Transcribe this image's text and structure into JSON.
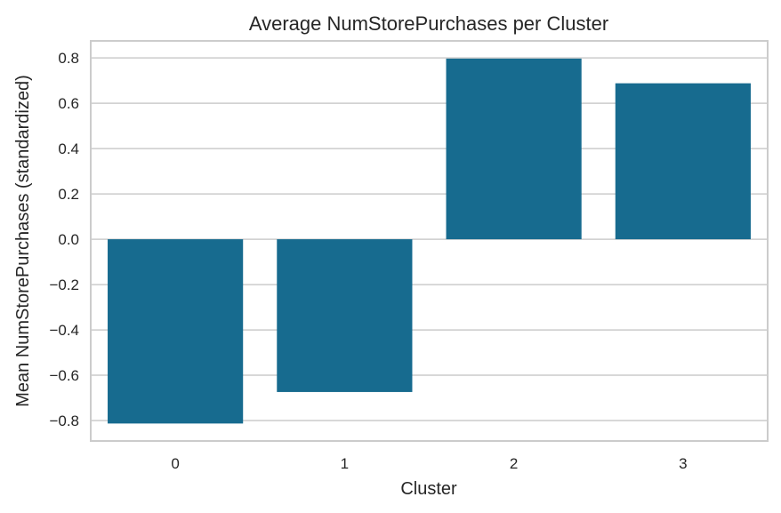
{
  "chart_data": {
    "type": "bar",
    "title": "Average NumStorePurchases per Cluster",
    "xlabel": "Cluster",
    "ylabel": "Mean NumStorePurchases (standardized)",
    "categories": [
      "0",
      "1",
      "2",
      "3"
    ],
    "values": [
      -0.813,
      -0.674,
      0.797,
      0.688
    ],
    "ylim": [
      -0.89,
      0.875
    ],
    "yticks": [
      0.8,
      0.6,
      0.4,
      0.2,
      0.0,
      -0.2,
      -0.4,
      -0.6,
      -0.8
    ],
    "ytick_labels": [
      "0.8",
      "0.6",
      "0.4",
      "0.2",
      "0.0",
      "−0.2",
      "−0.4",
      "−0.6",
      "−0.8"
    ],
    "bar_color": "#176b8f",
    "grid": true
  }
}
